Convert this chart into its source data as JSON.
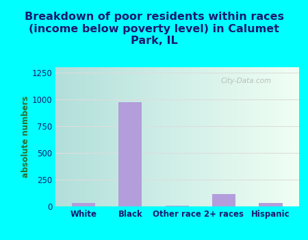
{
  "categories": [
    "White",
    "Black",
    "Other race",
    "2+ races",
    "Hispanic"
  ],
  "values": [
    30,
    975,
    5,
    115,
    30
  ],
  "bar_color": "#b39ddb",
  "title": "Breakdown of poor residents within races\n(income below poverty level) in Calumet\nPark, IL",
  "ylabel": "absolute numbers",
  "ylim": [
    0,
    1300
  ],
  "yticks": [
    0,
    250,
    500,
    750,
    1000,
    1250
  ],
  "background_color": "#00ffff",
  "plot_bg_left": "#b2dfdb",
  "plot_bg_right": "#f0fff4",
  "grid_color": "#dddddd",
  "title_color": "#1a1a6e",
  "ylabel_color": "#2e6e2e",
  "tick_color": "#1a1a6e",
  "watermark": "City-Data.com",
  "title_fontsize": 11.5,
  "ylabel_fontsize": 8.5,
  "tick_fontsize": 8.5
}
